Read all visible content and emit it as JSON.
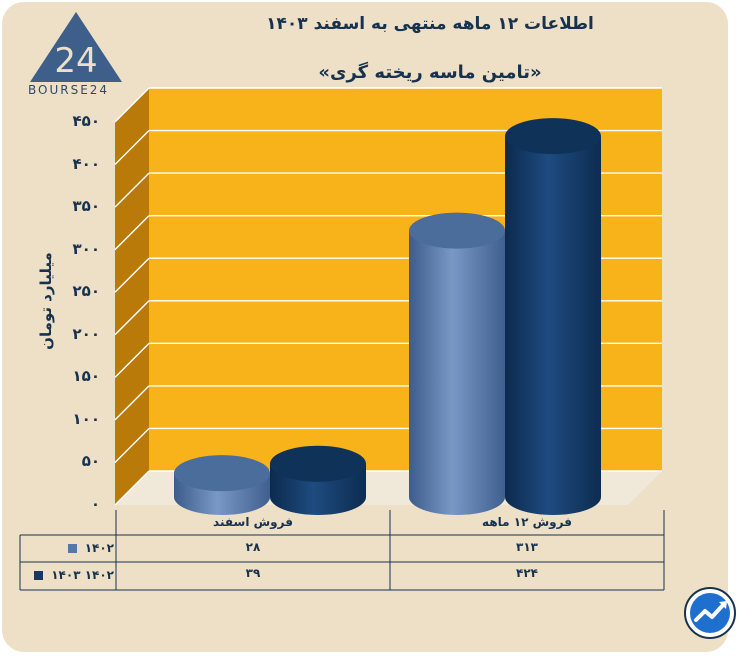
{
  "header": {
    "title": "اطلاعات ۱۲ ماهه منتهی به اسفند ۱۴۰۳",
    "subtitle": "«تامین ماسه ریخته گری»"
  },
  "logo": {
    "text": "BOURSE24",
    "mark": "24"
  },
  "chart_data": {
    "type": "bar",
    "categories": [
      "فروش ۱۲ ماهه",
      "فروش اسفند"
    ],
    "series": [
      {
        "name": "۱۴۰۲",
        "values": [
          313,
          28
        ],
        "labels": [
          "۳۱۳",
          "۲۸"
        ],
        "color": "#5877a6"
      },
      {
        "name": "۱۴۰۲ ۱۴۰۳",
        "values": [
          424,
          39
        ],
        "labels": [
          "۴۲۴",
          "۳۹"
        ],
        "color": "#123a66"
      }
    ],
    "ylabel": "میلیارد تومان",
    "ylim": [
      0,
      450
    ],
    "yticks": [
      {
        "value": 450,
        "label": "۴۵۰"
      },
      {
        "value": 400,
        "label": "۴۰۰"
      },
      {
        "value": 350,
        "label": "۳۵۰"
      },
      {
        "value": 300,
        "label": "۳۰۰"
      },
      {
        "value": 250,
        "label": "۲۵۰"
      },
      {
        "value": 200,
        "label": "۲۰۰"
      },
      {
        "value": 150,
        "label": "۱۵۰"
      },
      {
        "value": 100,
        "label": "۱۰۰"
      },
      {
        "value": 50,
        "label": "۵۰"
      },
      {
        "value": 0,
        "label": "۰"
      }
    ],
    "grid": true,
    "background_color": "#f8b31b",
    "data_table": true
  }
}
